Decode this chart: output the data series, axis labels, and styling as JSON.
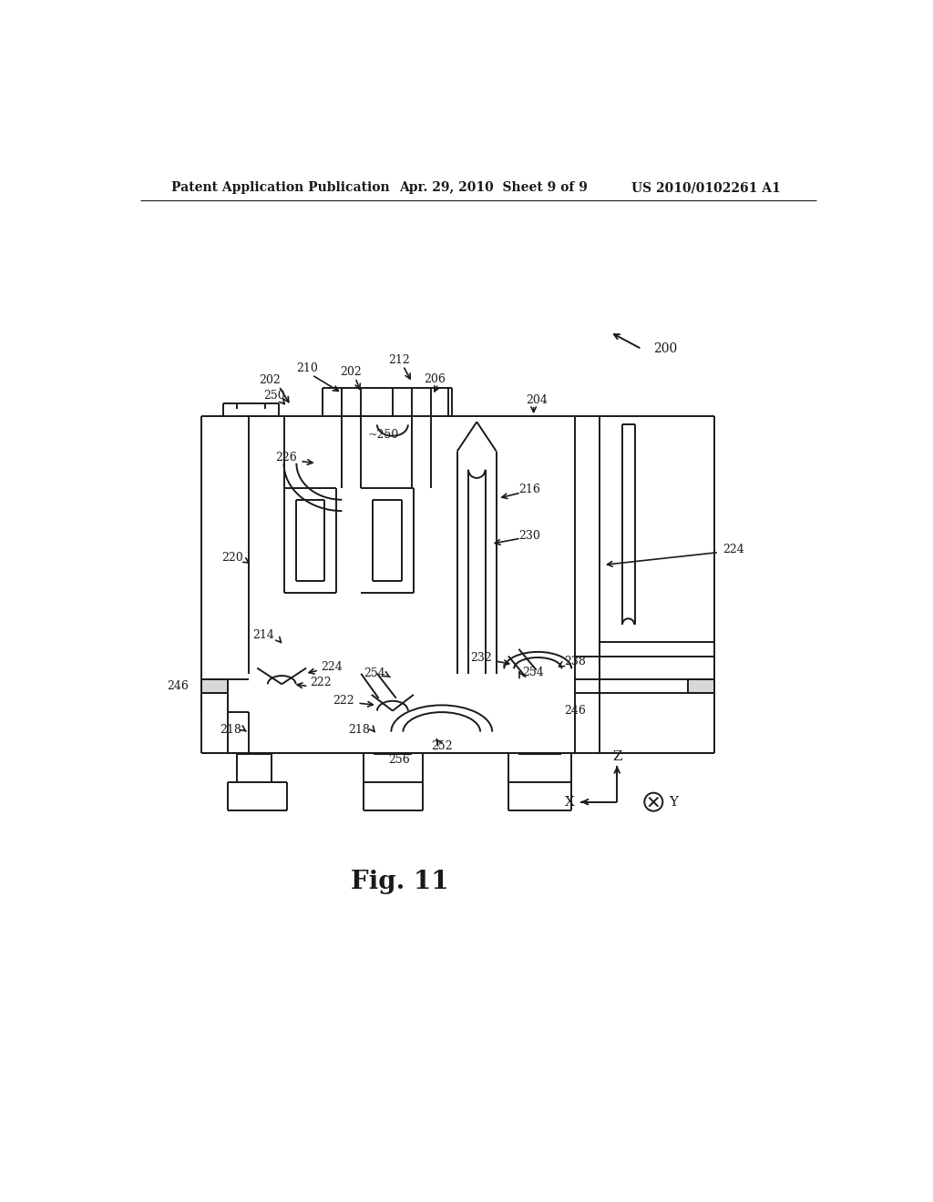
{
  "background_color": "#ffffff",
  "line_color": "#1a1a1a",
  "header_left": "Patent Application Publication",
  "header_center": "Apr. 29, 2010  Sheet 9 of 9",
  "header_right": "US 2010/0102261 A1",
  "figure_label": "Fig. 11",
  "lw": 1.4
}
